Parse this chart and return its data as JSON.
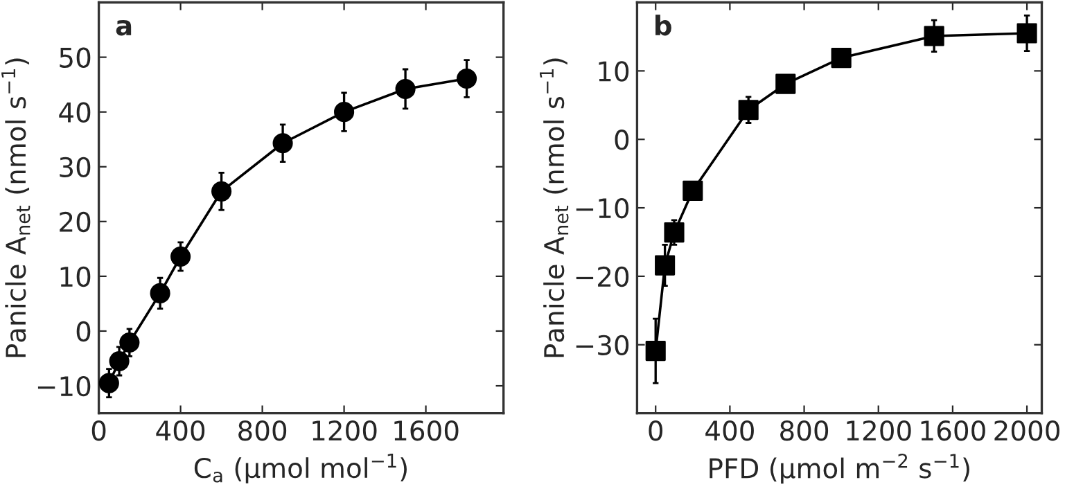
{
  "chart_data": [
    {
      "type": "line",
      "title": "a",
      "xlabel": "C$_{a}$ (μmol mol$^{−1}$)",
      "ylabel": "Panicle A$_{net}$ (nmol s$^{−1}$)",
      "x": [
        50,
        100,
        150,
        300,
        400,
        600,
        900,
        1200,
        1500,
        1800
      ],
      "marker": "circle",
      "line_style": "solid",
      "xlim": [
        0,
        1980
      ],
      "xticks": [
        0,
        400,
        800,
        1200,
        1600
      ],
      "ylim": [
        -15,
        60
      ],
      "yticks": [
        {
          "value": -10,
          "label": "−10"
        },
        0,
        10,
        20,
        30,
        40,
        50
      ],
      "series": [
        {
          "color": "#000000",
          "values": [
            -9.5,
            -5.5,
            -2.1,
            6.9,
            13.6,
            25.5,
            34.3,
            40.0,
            44.2,
            46.1
          ],
          "errors": [
            2.6,
            2.6,
            2.5,
            2.8,
            2.6,
            3.4,
            3.4,
            3.5,
            3.6,
            3.4
          ]
        }
      ]
    },
    {
      "type": "line",
      "title": "b",
      "xlabel": "PFD (μmol m$^{−2}$ s$^{−1}$)",
      "ylabel": "Panicle A$_{net}$ (nmol s$^{−1}$)",
      "x": [
        0,
        50,
        100,
        200,
        500,
        700,
        1000,
        1500,
        2000
      ],
      "marker": "square",
      "line_style": "solid",
      "xlim": [
        -100,
        2080
      ],
      "xticks": [
        0,
        400,
        800,
        1200,
        1600,
        2000
      ],
      "ylim": [
        -40,
        20
      ],
      "yticks": [
        {
          "value": -30,
          "label": "−30"
        },
        {
          "value": -20,
          "label": "−20"
        },
        {
          "value": -10,
          "label": "−10"
        },
        0,
        10
      ],
      "series": [
        {
          "color": "#000000",
          "values": [
            -30.9,
            -18.4,
            -13.6,
            -7.5,
            4.3,
            8.1,
            11.9,
            15.1,
            15.5
          ],
          "errors": [
            4.7,
            3.0,
            1.8,
            1.0,
            1.9,
            1.0,
            1.0,
            2.3,
            2.6
          ]
        }
      ]
    }
  ]
}
